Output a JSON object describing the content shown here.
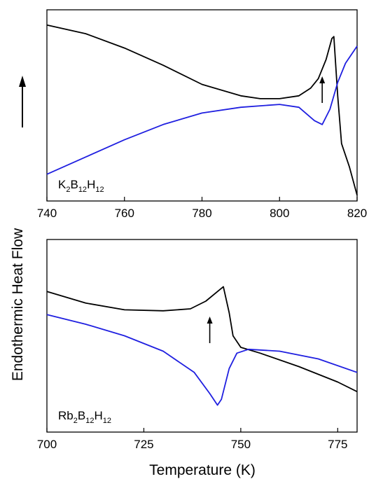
{
  "shared_ylabel": "Endothermic Heat Flow",
  "shared_xlabel": "Temperature (K)",
  "colors": {
    "black": "#000000",
    "blue": "#1f1fe0"
  },
  "chart_data": [
    {
      "type": "line",
      "panel": "top",
      "sample_label": {
        "prefix": "K",
        "s1": "2",
        "mid": "B",
        "s2": "12",
        "end": "H",
        "s3": "12"
      },
      "xlim": [
        740,
        820
      ],
      "x_ticks": [
        740,
        760,
        780,
        800,
        820
      ],
      "y_ticks_shown": false,
      "annotation": {
        "type": "arrow-up",
        "x": 811
      },
      "series": [
        {
          "color": "#000000",
          "points": [
            [
              740,
              0.92
            ],
            [
              750,
              0.875
            ],
            [
              760,
              0.8
            ],
            [
              770,
              0.71
            ],
            [
              780,
              0.61
            ],
            [
              790,
              0.55
            ],
            [
              795,
              0.535
            ],
            [
              800,
              0.535
            ],
            [
              805,
              0.55
            ],
            [
              808,
              0.59
            ],
            [
              810,
              0.64
            ],
            [
              812,
              0.74
            ],
            [
              813.5,
              0.85
            ],
            [
              814,
              0.86
            ],
            [
              815,
              0.55
            ],
            [
              816,
              0.3
            ],
            [
              818,
              0.18
            ],
            [
              820,
              0.03
            ]
          ]
        },
        {
          "color": "#1f1fe0",
          "points": [
            [
              740,
              0.14
            ],
            [
              750,
              0.23
            ],
            [
              760,
              0.32
            ],
            [
              770,
              0.4
            ],
            [
              780,
              0.46
            ],
            [
              790,
              0.49
            ],
            [
              800,
              0.505
            ],
            [
              805,
              0.49
            ],
            [
              809,
              0.42
            ],
            [
              811,
              0.4
            ],
            [
              813,
              0.48
            ],
            [
              815,
              0.62
            ],
            [
              817,
              0.72
            ],
            [
              820,
              0.81
            ]
          ]
        }
      ]
    },
    {
      "type": "line",
      "panel": "bottom",
      "sample_label": {
        "prefix": "Rb",
        "s1": "2",
        "mid": "B",
        "s2": "12",
        "end": "H",
        "s3": "12"
      },
      "xlim": [
        700,
        780
      ],
      "x_ticks": [
        700,
        725,
        750,
        775
      ],
      "y_ticks_shown": false,
      "annotation": {
        "type": "arrow-up",
        "x": 742
      },
      "series": [
        {
          "color": "#000000",
          "points": [
            [
              700,
              0.73
            ],
            [
              710,
              0.67
            ],
            [
              720,
              0.635
            ],
            [
              730,
              0.63
            ],
            [
              737,
              0.64
            ],
            [
              741,
              0.68
            ],
            [
              744,
              0.73
            ],
            [
              745.5,
              0.755
            ],
            [
              747,
              0.62
            ],
            [
              748,
              0.5
            ],
            [
              750,
              0.44
            ],
            [
              755,
              0.41
            ],
            [
              765,
              0.34
            ],
            [
              775,
              0.26
            ],
            [
              780,
              0.21
            ]
          ]
        },
        {
          "color": "#1f1fe0",
          "points": [
            [
              700,
              0.61
            ],
            [
              710,
              0.56
            ],
            [
              720,
              0.5
            ],
            [
              730,
              0.42
            ],
            [
              738,
              0.31
            ],
            [
              742,
              0.2
            ],
            [
              744,
              0.14
            ],
            [
              745,
              0.17
            ],
            [
              747,
              0.33
            ],
            [
              749,
              0.41
            ],
            [
              752,
              0.43
            ],
            [
              760,
              0.42
            ],
            [
              770,
              0.38
            ],
            [
              780,
              0.31
            ]
          ]
        }
      ]
    }
  ]
}
